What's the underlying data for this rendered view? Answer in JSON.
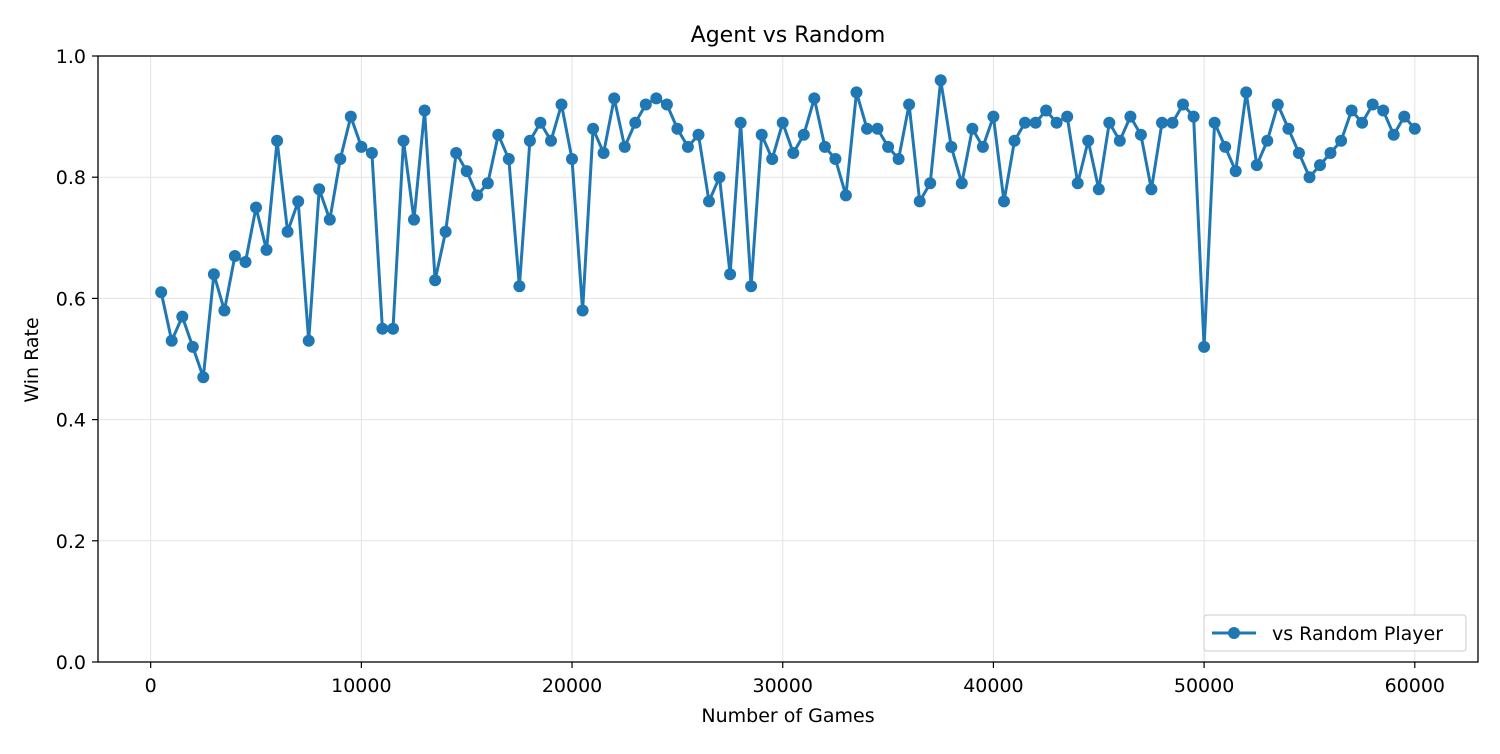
{
  "chart_data": {
    "type": "line",
    "title": "Agent vs Random",
    "xlabel": "Number of Games",
    "ylabel": "Win Rate",
    "xlim": [
      -2500,
      63000
    ],
    "ylim": [
      0,
      1.0
    ],
    "xticks": [
      0,
      10000,
      20000,
      30000,
      40000,
      50000,
      60000
    ],
    "xtick_labels": [
      "0",
      "10000",
      "20000",
      "30000",
      "40000",
      "50000",
      "60000"
    ],
    "yticks": [
      0,
      0.2,
      0.4,
      0.6,
      0.8,
      1.0
    ],
    "ytick_labels": [
      "0.0",
      "0.2",
      "0.4",
      "0.6",
      "0.8",
      "1.0"
    ],
    "grid": true,
    "legend_position": "bottom-right",
    "series": [
      {
        "name": "vs Random Player",
        "color": "#1f77b4",
        "marker": "circle",
        "x": [
          500,
          1000,
          1500,
          2000,
          2500,
          3000,
          3500,
          4000,
          4500,
          5000,
          5500,
          6000,
          6500,
          7000,
          7500,
          8000,
          8500,
          9000,
          9500,
          10000,
          10500,
          11000,
          11500,
          12000,
          12500,
          13000,
          13500,
          14000,
          14500,
          15000,
          15500,
          16000,
          16500,
          17000,
          17500,
          18000,
          18500,
          19000,
          19500,
          20000,
          20500,
          21000,
          21500,
          22000,
          22500,
          23000,
          23500,
          24000,
          24500,
          25000,
          25500,
          26000,
          26500,
          27000,
          27500,
          28000,
          28500,
          29000,
          29500,
          30000,
          30500,
          31000,
          31500,
          32000,
          32500,
          33000,
          33500,
          34000,
          34500,
          35000,
          35500,
          36000,
          36500,
          37000,
          37500,
          38000,
          38500,
          39000,
          39500,
          40000,
          40500,
          41000,
          41500,
          42000,
          42500,
          43000,
          43500,
          44000,
          44500,
          45000,
          45500,
          46000,
          46500,
          47000,
          47500,
          48000,
          48500,
          49000,
          49500,
          50000,
          50500,
          51000,
          51500,
          52000,
          52500,
          53000,
          53500,
          54000,
          54500,
          55000,
          55500,
          56000,
          56500,
          57000,
          57500,
          58000,
          58500,
          59000,
          59500,
          60000
        ],
        "y": [
          0.61,
          0.53,
          0.57,
          0.52,
          0.47,
          0.64,
          0.58,
          0.67,
          0.66,
          0.75,
          0.68,
          0.86,
          0.71,
          0.76,
          0.53,
          0.78,
          0.73,
          0.83,
          0.9,
          0.85,
          0.84,
          0.55,
          0.55,
          0.86,
          0.73,
          0.91,
          0.63,
          0.71,
          0.84,
          0.81,
          0.77,
          0.79,
          0.87,
          0.83,
          0.62,
          0.86,
          0.89,
          0.86,
          0.92,
          0.83,
          0.58,
          0.88,
          0.84,
          0.93,
          0.85,
          0.89,
          0.92,
          0.93,
          0.92,
          0.88,
          0.85,
          0.87,
          0.76,
          0.8,
          0.64,
          0.89,
          0.62,
          0.87,
          0.83,
          0.89,
          0.84,
          0.87,
          0.93,
          0.85,
          0.83,
          0.77,
          0.94,
          0.88,
          0.88,
          0.85,
          0.83,
          0.92,
          0.76,
          0.79,
          0.96,
          0.85,
          0.79,
          0.88,
          0.85,
          0.9,
          0.76,
          0.86,
          0.89,
          0.89,
          0.91,
          0.89,
          0.9,
          0.79,
          0.86,
          0.78,
          0.89,
          0.86,
          0.9,
          0.87,
          0.78,
          0.89,
          0.89,
          0.92,
          0.9,
          0.52,
          0.89,
          0.85,
          0.81,
          0.94,
          0.82,
          0.86,
          0.92,
          0.88,
          0.84,
          0.8,
          0.82,
          0.84,
          0.86,
          0.91,
          0.89,
          0.92,
          0.91,
          0.87,
          0.9,
          0.88
        ]
      }
    ]
  }
}
